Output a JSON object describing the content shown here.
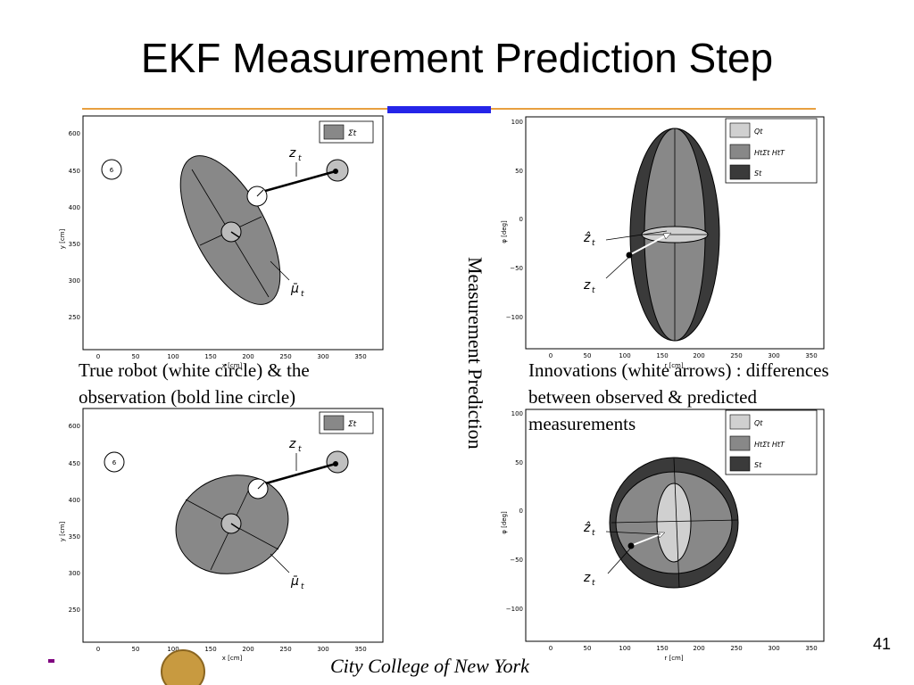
{
  "slide": {
    "title": "EKF Measurement Prediction Step",
    "vertical_label": "Measurement Prediction",
    "page_number": "41",
    "footer": "City College of New York"
  },
  "captions": {
    "left": [
      "True robot (white circle)  & the",
      "observation (bold line circle)"
    ],
    "right": [
      "Innovations (white arrows) : differences",
      "between observed & predicted",
      "measurements"
    ]
  },
  "left_plots": {
    "x_ticks": [
      "0",
      "50",
      "100",
      "150",
      "200",
      "250",
      "300",
      "350"
    ],
    "y_ticks": [
      "600",
      "450",
      "400",
      "350",
      "300",
      "250"
    ],
    "xlabel": "x [cm]",
    "ylabel": "y [cm]",
    "legend": "Σ̄t",
    "label_zt": "z",
    "label_zt_sub": "t",
    "label_mu": "μ̄",
    "label_mu_sub": "t",
    "landmark_id": "6"
  },
  "right_plots": {
    "x_ticks": [
      "0",
      "50",
      "100",
      "150",
      "200",
      "250",
      "300",
      "350"
    ],
    "y_ticks": [
      "100",
      "50",
      "0",
      "−50",
      "−100"
    ],
    "xlabel": "r [cm]",
    "ylabel": "φ [deg]",
    "legend": [
      "Qt",
      "HtΣ̄t  HtT",
      "St"
    ],
    "label_zhat": "ẑ",
    "label_zt": "z",
    "label_sub": "t"
  },
  "colors": {
    "title_rule": "#e8a040",
    "accent_bar": "#2525e8",
    "ellipse_gray": "#888888",
    "dark_gray": "#3a3a3a",
    "light_gray": "#d0d0d0",
    "bullet": "#800080"
  }
}
